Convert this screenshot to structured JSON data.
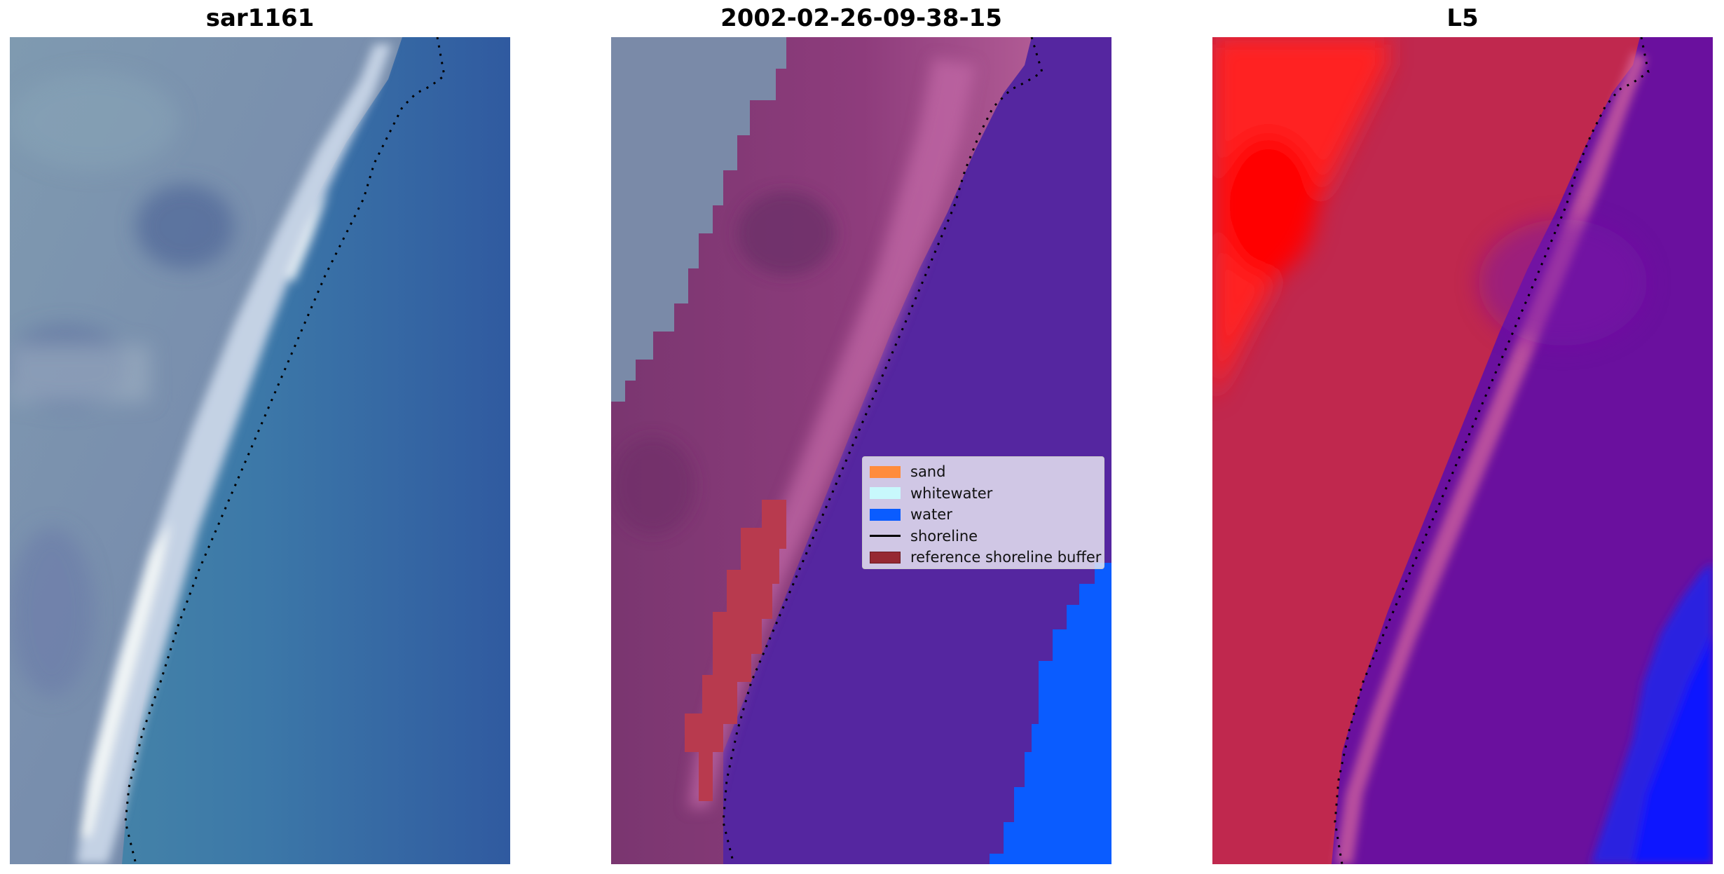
{
  "panels": [
    {
      "id": "rgb",
      "title": "sar1161"
    },
    {
      "id": "classified",
      "title": "2002-02-26-09-38-15"
    },
    {
      "id": "mndwi",
      "title": "L5"
    }
  ],
  "legend": {
    "items": [
      {
        "kind": "patch",
        "label": "sand",
        "color": "#ff8c3c"
      },
      {
        "kind": "patch",
        "label": "whitewater",
        "color": "#c8f8fc"
      },
      {
        "kind": "patch",
        "label": "water",
        "color": "#0a5cff"
      },
      {
        "kind": "line",
        "label": "shoreline",
        "color": "#000000"
      },
      {
        "kind": "patch",
        "label": "reference shoreline buffer",
        "color": "#962832"
      }
    ]
  },
  "colors": {
    "water_class": "#0a5cff",
    "water_overlay": "#5526a0",
    "sand_overlay": "#8a3a78",
    "buffer": "#b83a4e",
    "land_red": "#ff2020",
    "index_land": "#c0284e",
    "index_water": "#6a109e",
    "shoreline": "#000000"
  }
}
